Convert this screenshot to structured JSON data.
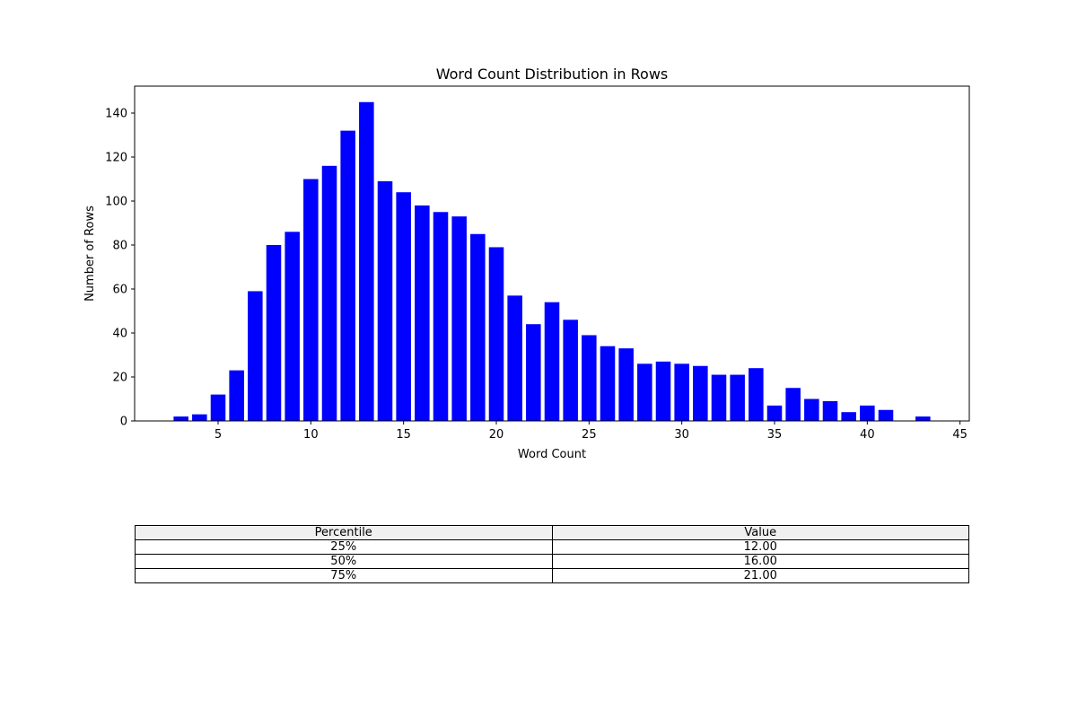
{
  "chart_data": {
    "type": "bar",
    "title": "Word Count Distribution in Rows",
    "xlabel": "Word Count",
    "ylabel": "Number of Rows",
    "x": [
      3,
      4,
      5,
      6,
      7,
      8,
      9,
      10,
      11,
      12,
      13,
      14,
      15,
      16,
      17,
      18,
      19,
      20,
      21,
      22,
      23,
      24,
      25,
      26,
      27,
      28,
      29,
      30,
      31,
      32,
      33,
      34,
      35,
      36,
      37,
      38,
      39,
      40,
      41,
      43
    ],
    "values": [
      2,
      3,
      12,
      23,
      59,
      80,
      86,
      110,
      116,
      132,
      145,
      109,
      104,
      98,
      95,
      93,
      85,
      79,
      57,
      44,
      54,
      46,
      39,
      34,
      33,
      26,
      27,
      26,
      25,
      21,
      21,
      24,
      7,
      15,
      10,
      9,
      4,
      7,
      5,
      2
    ],
    "xlim": [
      0.5,
      45.5
    ],
    "ylim": [
      0,
      152.25
    ],
    "xticks": [
      "5",
      "10",
      "15",
      "20",
      "25",
      "30",
      "35",
      "40",
      "45"
    ],
    "yticks": [
      "0",
      "20",
      "40",
      "60",
      "80",
      "100",
      "120",
      "140"
    ],
    "bar_color": "#0000ff",
    "grid": false,
    "legend": "none"
  },
  "table": {
    "headers": [
      "Percentile",
      "Value"
    ],
    "rows": [
      [
        "25%",
        "12.00"
      ],
      [
        "50%",
        "16.00"
      ],
      [
        "75%",
        "21.00"
      ]
    ],
    "header_bg": "#f0f0f0"
  }
}
